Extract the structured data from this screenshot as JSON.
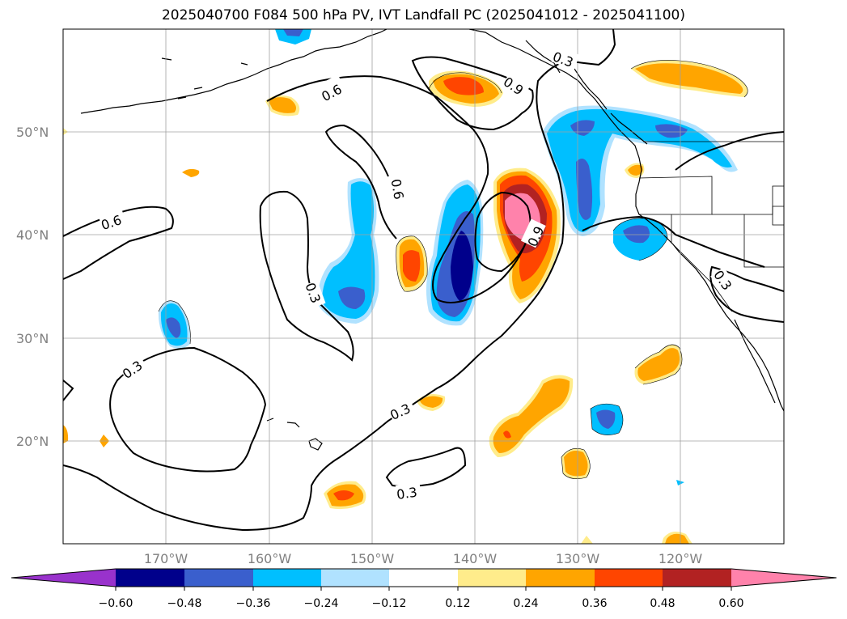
{
  "title": "2025040700 F084 500 hPa PV, IVT Landfall PC (2025041012 - 2025041100)",
  "map": {
    "lat_labels": [
      "50°N",
      "40°N",
      "30°N",
      "20°N"
    ],
    "lon_labels": [
      "170°W",
      "160°W",
      "150°W",
      "140°W",
      "130°W",
      "120°W"
    ],
    "contour_labels": [
      "0.6",
      "0.9",
      "0.3",
      "0.6",
      "0.6",
      "0.9",
      "0.3",
      "0.3",
      "0.3",
      "0.3",
      "0.3"
    ],
    "grid": true
  },
  "colorbar": {
    "ticks": [
      "−0.60",
      "−0.48",
      "−0.36",
      "−0.24",
      "−0.12",
      "0.12",
      "0.24",
      "0.36",
      "0.48",
      "0.60"
    ],
    "colors": [
      "#9932CC",
      "#00008B",
      "#3A5FCD",
      "#00BFFF",
      "#B0E2FF",
      "#FFFFFF",
      "#FFEC8B",
      "#FFA500",
      "#FF4500",
      "#B22222",
      "#FF82AB"
    ],
    "extend": "both"
  }
}
